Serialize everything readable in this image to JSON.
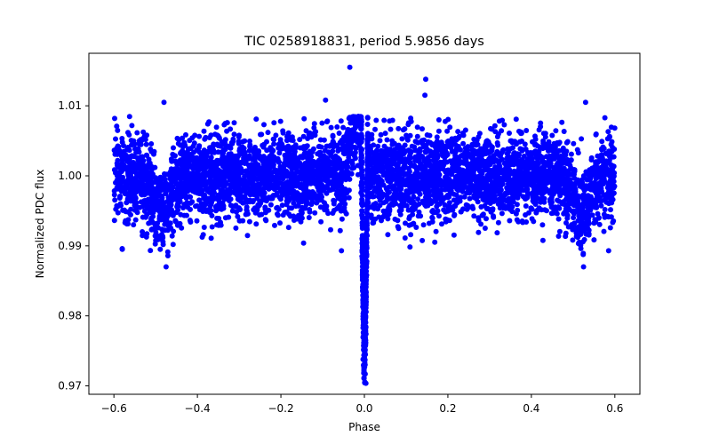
{
  "chart_data": {
    "type": "scatter",
    "title": "TIC 0258918831, period 5.9856 days",
    "xlabel": "Phase",
    "ylabel": "Normalized PDC flux",
    "xlim": [
      -0.66,
      0.66
    ],
    "ylim": [
      0.9688,
      1.0175
    ],
    "xticks": [
      -0.6,
      -0.4,
      -0.2,
      0.0,
      0.2,
      0.4,
      0.6
    ],
    "xtick_labels": [
      "−0.6",
      "−0.4",
      "−0.2",
      "0.0",
      "0.2",
      "0.4",
      "0.6"
    ],
    "yticks": [
      0.97,
      0.98,
      0.99,
      1.0,
      1.01
    ],
    "ytick_labels": [
      "0.97",
      "0.98",
      "0.99",
      "1.00",
      "1.01"
    ],
    "grid": false,
    "marker_color": "#0000ff",
    "series": [
      {
        "phase_range": [
          -0.6,
          0.6
        ],
        "baseline_flux": 1.0,
        "scatter_band": [
          0.993,
          1.007
        ],
        "outlier_extent": [
          0.9925,
          1.0085
        ],
        "transit": {
          "center_phase": 0.0,
          "min_flux": 0.9715,
          "half_width_phase": 0.007
        },
        "pre_transit_bump": {
          "phase": -0.02,
          "max_flux": 1.0155
        },
        "edge_dips": [
          {
            "phase": -0.485,
            "min_flux": 0.9865
          },
          {
            "phase": 0.52,
            "min_flux": 0.9868
          }
        ],
        "isolated_points": [
          {
            "x": -0.035,
            "y": 1.0155
          },
          {
            "x": 0.147,
            "y": 1.0138
          },
          {
            "x": 0.145,
            "y": 1.0115
          },
          {
            "x": -0.093,
            "y": 1.0108
          },
          {
            "x": -0.48,
            "y": 1.0105
          },
          {
            "x": 0.53,
            "y": 1.0105
          },
          {
            "x": -0.58,
            "y": 0.9895
          },
          {
            "x": -0.055,
            "y": 0.9893
          },
          {
            "x": 0.585,
            "y": 0.9893
          },
          {
            "x": -0.475,
            "y": 0.987
          },
          {
            "x": 0.525,
            "y": 0.987
          }
        ]
      }
    ]
  }
}
